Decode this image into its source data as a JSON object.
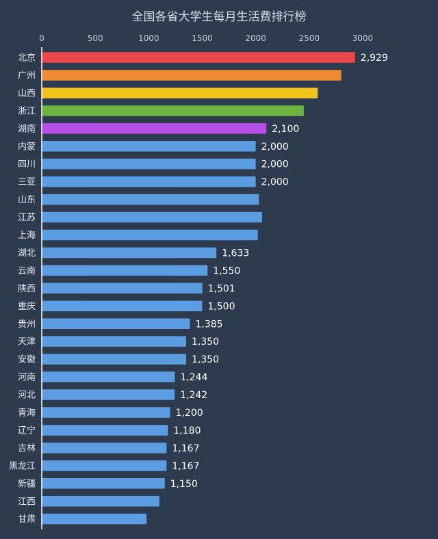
{
  "chart_data": {
    "type": "bar",
    "orientation": "horizontal",
    "title": "全国各省大学生每月生活费排行榜",
    "xlabel": "",
    "ylabel": "",
    "xlim": [
      0,
      3000
    ],
    "xticks": [
      0,
      500,
      1000,
      1500,
      2000,
      2500,
      3000
    ],
    "xtick_labels": [
      "0",
      "500",
      "1000",
      "1500",
      "2000",
      "2500",
      "3000"
    ],
    "axis_position": "top",
    "grid": false,
    "legend": "none",
    "categories": [
      "北京",
      "广州",
      "山西",
      "浙江",
      "湖南",
      "内蒙",
      "四川",
      "三亚",
      "山东",
      "江苏",
      "上海",
      "湖北",
      "云南",
      "陕西",
      "重庆",
      "贵州",
      "天津",
      "安徽",
      "河南",
      "河北",
      "青海",
      "辽宁",
      "吉林",
      "黑龙江",
      "新疆",
      "江西",
      "甘肃"
    ],
    "values": [
      2929,
      2800,
      2580,
      2450,
      2100,
      2000,
      2000,
      2000,
      2030,
      2060,
      2020,
      1633,
      1550,
      1501,
      1500,
      1385,
      1350,
      1350,
      1244,
      1242,
      1200,
      1180,
      1167,
      1167,
      1150,
      1100,
      980
    ],
    "value_labels": [
      "2,929",
      "",
      "",
      "",
      "2,100",
      "2,000",
      "2,000",
      "2,000",
      "",
      "",
      "",
      "1,633",
      "1,550",
      "1,501",
      "1,500",
      "1,385",
      "1,350",
      "1,350",
      "1,244",
      "1,242",
      "1,200",
      "1,180",
      "1,167",
      "1,167",
      "1,150",
      "",
      ""
    ],
    "colors": [
      "#e8474b",
      "#ef8a34",
      "#f4c21f",
      "#6cb33f",
      "#b34fe6",
      "#5b9de0",
      "#5b9de0",
      "#5b9de0",
      "#5b9de0",
      "#5b9de0",
      "#5b9de0",
      "#5b9de0",
      "#5b9de0",
      "#5b9de0",
      "#5b9de0",
      "#5b9de0",
      "#5b9de0",
      "#5b9de0",
      "#5b9de0",
      "#5b9de0",
      "#5b9de0",
      "#5b9de0",
      "#5b9de0",
      "#5b9de0",
      "#5b9de0",
      "#5b9de0",
      "#5b9de0"
    ],
    "background": "#2e3b4e",
    "axis_color": "#ffffff"
  }
}
